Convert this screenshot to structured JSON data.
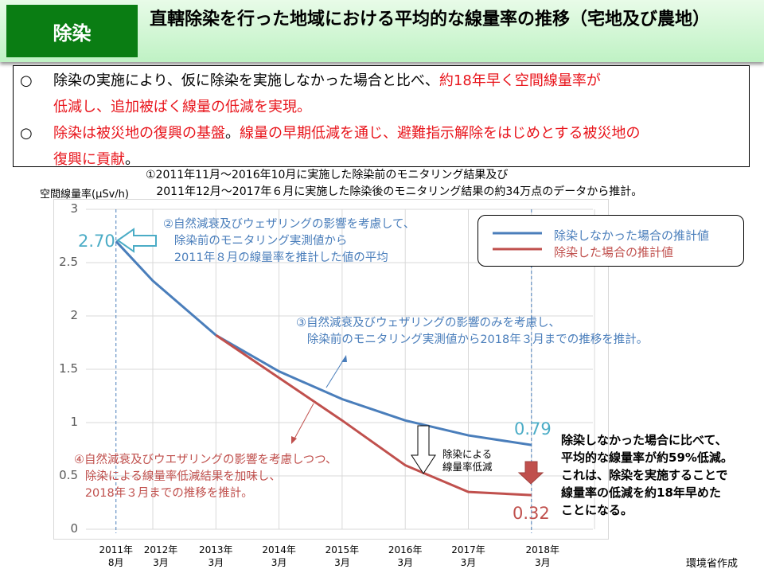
{
  "header": {
    "tag": "除染",
    "title": "直轄除染を行った地域における平均的な線量率の推移（宅地及び農地）"
  },
  "summary": {
    "bullet": "○",
    "p1_black": "除染の実施により、仮に除染を実施しなかった場合と比べ、",
    "p1_red": "約18年早く空間線量率が",
    "p1_red2": "低減し、追加被ばく線量の低減を実現",
    "p1_end": "。",
    "p2_red": "除染は被災地の復興の基盤",
    "p2_mid": "。",
    "p2_red2": "線量の早期低減を通じ、避難指示解除をはじめとする被災地の",
    "p2_red3": "復興に貢献",
    "p2_end": "。"
  },
  "note": "①2011年11月～2016年10月に実施した除染前のモニタリング結果及び\n   2011年12月～2017年６月に実施した除染後のモニタリング結果の約34万点のデータから推計。",
  "chart_data": {
    "type": "line",
    "ylabel": "空間線量率(μSv/h)",
    "ylim": [
      0,
      3
    ],
    "yticks": [
      "3",
      "2.5",
      "2",
      "1.5",
      "1",
      "0.5",
      "0"
    ],
    "x": [
      "2011-08",
      "2012-03",
      "2013-03",
      "2014-03",
      "2015-03",
      "2016-03",
      "2017-03",
      "2018-03"
    ],
    "xtick_labels": [
      "2011年\n8月",
      "2012年\n3月",
      "2013年\n3月",
      "2014年\n3月",
      "2015年\n3月",
      "2016年\n3月",
      "2017年\n3月",
      "2018年\n3月"
    ],
    "grid": true,
    "legend_position": "top-right",
    "series": [
      {
        "name": "除染しなかった場合の推計値",
        "color": "#4a7ebb",
        "values": [
          2.7,
          2.33,
          1.82,
          1.48,
          1.22,
          1.02,
          0.88,
          0.79
        ]
      },
      {
        "name": "除染した場合の推計値",
        "color": "#c0504d",
        "values": [
          null,
          null,
          1.82,
          1.42,
          1.02,
          0.6,
          0.35,
          0.32
        ]
      }
    ],
    "data_labels": {
      "start": "2.70",
      "end_blue": "0.79",
      "end_red": "0.32"
    },
    "annotations": {
      "a2": "②自然減衰及びウェザリングの影響を考慮して、\n   除染前のモニタリング実測値から\n   2011年８月の線量率を推計した値の平均",
      "a3": "③自然減衰及びウェザリングの影響のみを考慮し、\n   除染前のモニタリング実測値から2018年３月までの推移を推計。",
      "a4": "④自然減衰及びウエザリングの影響を考慮しつつ、\n   除染による線量率低減結果を加味し、\n   2018年３月までの推移を推計。",
      "reduction": "除染による\n線量率低減"
    }
  },
  "conclusion": "除染しなかった場合に比べて、\n平均的な線量率が約59%低減。\nこれは、除染を実施することで\n線量率の低減を約18年早めた\nことになる。",
  "credit": "環境省作成"
}
